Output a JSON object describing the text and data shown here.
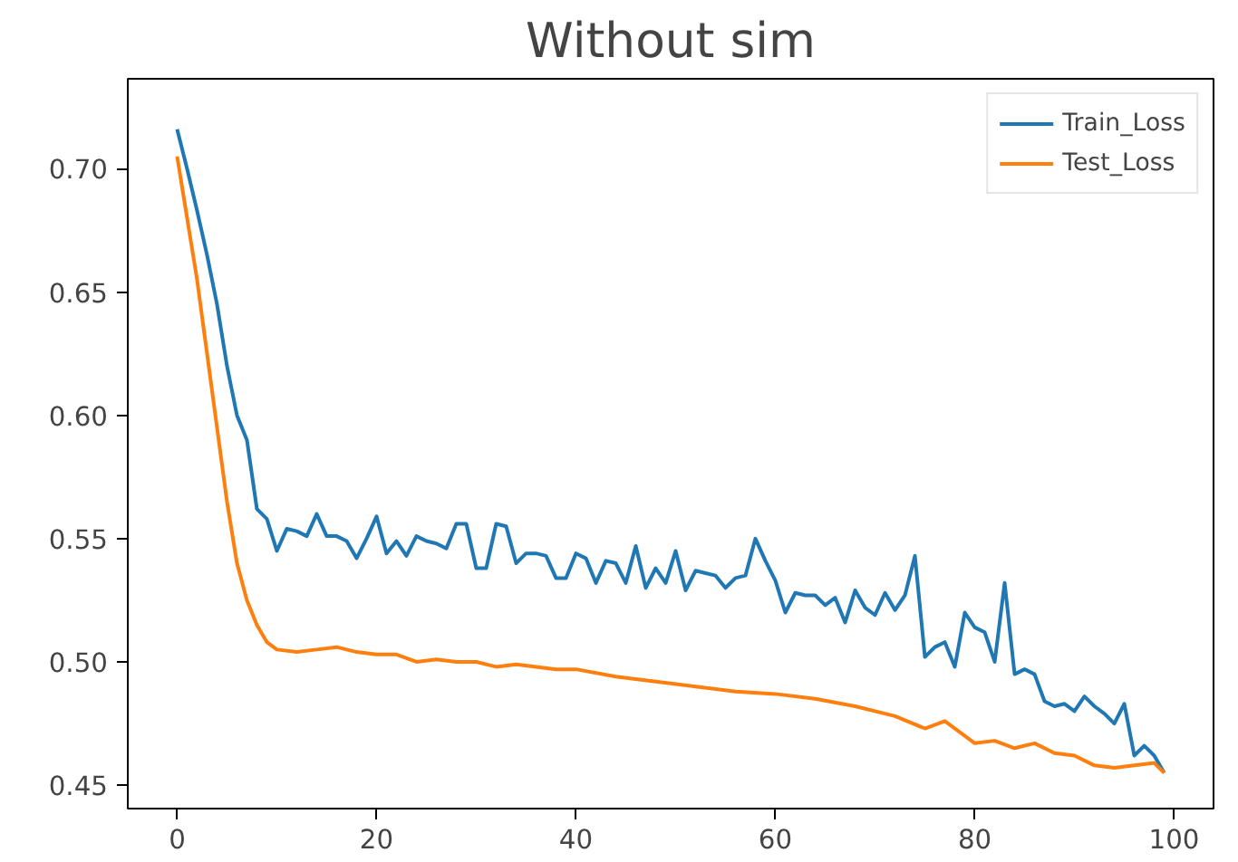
{
  "chart_data": {
    "type": "line",
    "title": "Without sim",
    "xlim": [
      -4.95,
      103.95
    ],
    "ylim": [
      0.4405,
      0.7365
    ],
    "xticks": [
      0,
      20,
      40,
      60,
      80,
      100
    ],
    "yticks": [
      {
        "value": 0.45,
        "label": "0.45"
      },
      {
        "value": 0.5,
        "label": "0.50"
      },
      {
        "value": 0.55,
        "label": "0.55"
      },
      {
        "value": 0.6,
        "label": "0.60"
      },
      {
        "value": 0.65,
        "label": "0.65"
      },
      {
        "value": 0.7,
        "label": "0.70"
      }
    ],
    "grid": false,
    "legend": "top right",
    "line_style": "solid",
    "series": [
      {
        "name": "Train_Loss",
        "color": "#1f77b4",
        "x": [
          0,
          1,
          2,
          3,
          4,
          5,
          6,
          7,
          8,
          9,
          10,
          11,
          12,
          13,
          14,
          15,
          16,
          17,
          18,
          19,
          20,
          21,
          22,
          23,
          24,
          25,
          26,
          27,
          28,
          29,
          30,
          31,
          32,
          33,
          34,
          35,
          36,
          37,
          38,
          39,
          40,
          41,
          42,
          43,
          44,
          45,
          46,
          47,
          48,
          49,
          50,
          51,
          52,
          53,
          54,
          55,
          56,
          57,
          58,
          59,
          60,
          61,
          62,
          63,
          64,
          65,
          66,
          67,
          68,
          69,
          70,
          71,
          72,
          73,
          74,
          75,
          76,
          77,
          78,
          79,
          80,
          81,
          82,
          83,
          84,
          85,
          86,
          87,
          88,
          89,
          90,
          91,
          92,
          93,
          94,
          95,
          96,
          97,
          98,
          99
        ],
        "values": [
          0.716,
          0.7,
          0.683,
          0.665,
          0.645,
          0.62,
          0.6,
          0.59,
          0.562,
          0.558,
          0.545,
          0.554,
          0.553,
          0.551,
          0.56,
          0.551,
          0.551,
          0.549,
          0.542,
          0.55,
          0.559,
          0.544,
          0.549,
          0.543,
          0.551,
          0.549,
          0.548,
          0.546,
          0.556,
          0.556,
          0.538,
          0.538,
          0.556,
          0.555,
          0.54,
          0.544,
          0.544,
          0.543,
          0.534,
          0.534,
          0.544,
          0.542,
          0.532,
          0.541,
          0.54,
          0.532,
          0.547,
          0.53,
          0.538,
          0.532,
          0.545,
          0.529,
          0.537,
          0.536,
          0.535,
          0.53,
          0.534,
          0.535,
          0.55,
          0.541,
          0.533,
          0.52,
          0.528,
          0.527,
          0.527,
          0.523,
          0.526,
          0.516,
          0.529,
          0.522,
          0.519,
          0.528,
          0.521,
          0.527,
          0.543,
          0.502,
          0.506,
          0.508,
          0.498,
          0.52,
          0.514,
          0.512,
          0.5,
          0.532,
          0.495,
          0.497,
          0.495,
          0.484,
          0.482,
          0.483,
          0.48,
          0.486,
          0.482,
          0.479,
          0.475,
          0.483,
          0.462,
          0.466,
          0.462,
          0.455
        ]
      },
      {
        "name": "Test_Loss",
        "color": "#ff7f0e",
        "x": [
          0,
          1,
          2,
          3,
          4,
          5,
          6,
          7,
          8,
          9,
          10,
          12,
          14,
          16,
          18,
          20,
          22,
          24,
          26,
          28,
          30,
          32,
          34,
          36,
          38,
          40,
          44,
          48,
          52,
          56,
          60,
          64,
          68,
          72,
          75,
          77,
          80,
          82,
          84,
          86,
          88,
          90,
          92,
          94,
          96,
          98,
          99
        ],
        "values": [
          0.705,
          0.68,
          0.655,
          0.625,
          0.595,
          0.565,
          0.54,
          0.525,
          0.515,
          0.508,
          0.505,
          0.504,
          0.505,
          0.506,
          0.504,
          0.503,
          0.503,
          0.5,
          0.501,
          0.5,
          0.5,
          0.498,
          0.499,
          0.498,
          0.497,
          0.497,
          0.494,
          0.492,
          0.49,
          0.488,
          0.487,
          0.485,
          0.482,
          0.478,
          0.473,
          0.476,
          0.467,
          0.468,
          0.465,
          0.467,
          0.463,
          0.462,
          0.458,
          0.457,
          0.458,
          0.459,
          0.455
        ]
      }
    ]
  }
}
